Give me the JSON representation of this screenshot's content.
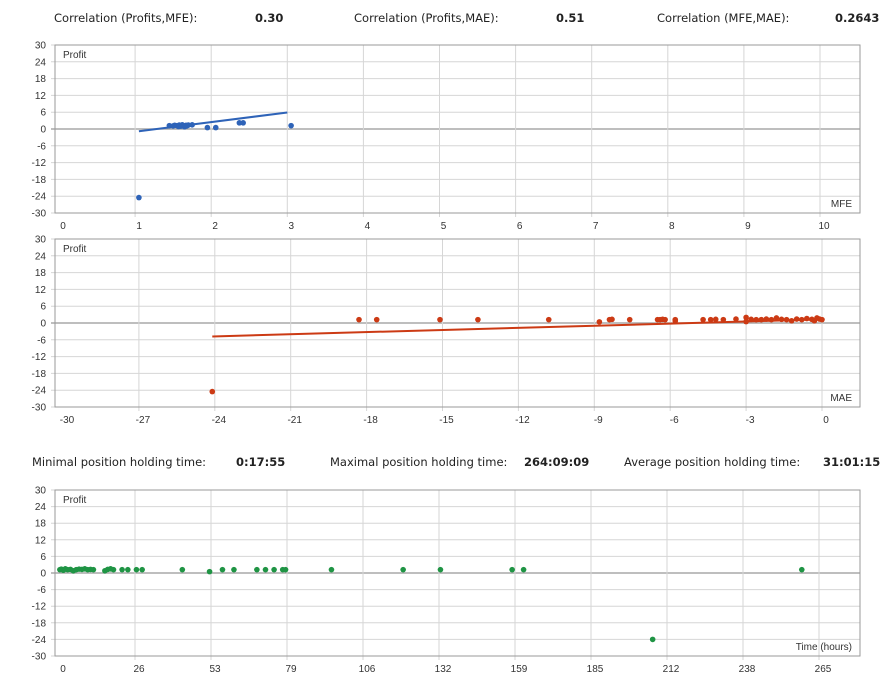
{
  "correlations": [
    {
      "label": "Correlation (Profits,MFE):",
      "value": "0.30"
    },
    {
      "label": "Correlation (Profits,MAE):",
      "value": "0.51"
    },
    {
      "label": "Correlation (MFE,MAE):",
      "value": "0.2643"
    }
  ],
  "holding_times": [
    {
      "label": "Minimal position holding time:",
      "value": "0:17:55"
    },
    {
      "label": "Maximal position holding time:",
      "value": "264:09:09"
    },
    {
      "label": "Average position holding time:",
      "value": "31:01:15"
    }
  ],
  "colors": {
    "mfe": "#2e63b8",
    "mae": "#cc3a14",
    "time": "#1f9444",
    "grid": "#d6d6d6",
    "axis": "#9a9a9a"
  },
  "chart_data": [
    {
      "type": "scatter",
      "title": "Profit vs MFE",
      "ylabel": "Profit",
      "xlabel": "MFE",
      "xlim": [
        0,
        10
      ],
      "ylim": [
        -30,
        30
      ],
      "x_ticks": [
        "0",
        "1",
        "2",
        "3",
        "4",
        "5",
        "6",
        "7",
        "8",
        "9",
        "10"
      ],
      "y_ticks": [
        "30",
        "24",
        "18",
        "12",
        "6",
        "0",
        "-6",
        "-12",
        "-18",
        "-24",
        "-30"
      ],
      "grid": true,
      "series": [
        {
          "name": "Profit",
          "points": [
            [
              1.05,
              -24.5
            ],
            [
              1.45,
              1.2
            ],
            [
              1.5,
              1.1
            ],
            [
              1.52,
              1.3
            ],
            [
              1.55,
              1.2
            ],
            [
              1.57,
              0.9
            ],
            [
              1.58,
              1.4
            ],
            [
              1.6,
              1.0
            ],
            [
              1.62,
              1.5
            ],
            [
              1.63,
              1.2
            ],
            [
              1.65,
              0.8
            ],
            [
              1.67,
              1.3
            ],
            [
              1.68,
              1.1
            ],
            [
              1.7,
              1.4
            ],
            [
              1.75,
              1.5
            ],
            [
              1.95,
              0.5
            ],
            [
              2.06,
              0.5
            ],
            [
              2.37,
              2.2
            ],
            [
              2.42,
              2.2
            ],
            [
              3.05,
              1.2
            ]
          ]
        }
      ],
      "trendline": {
        "x": [
          1.05,
          3.0
        ],
        "y": [
          -0.8,
          5.9
        ]
      }
    },
    {
      "type": "scatter",
      "title": "Profit vs MAE",
      "ylabel": "Profit",
      "xlabel": "MAE",
      "xlim": [
        -30,
        0
      ],
      "ylim": [
        -30,
        30
      ],
      "x_ticks": [
        "-30",
        "-27",
        "-24",
        "-21",
        "-18",
        "-15",
        "-12",
        "-9",
        "-6",
        "-3",
        "0"
      ],
      "y_ticks": [
        "30",
        "24",
        "18",
        "12",
        "6",
        "0",
        "-6",
        "-12",
        "-18",
        "-24",
        "-30"
      ],
      "grid": true,
      "series": [
        {
          "name": "Profit",
          "points": [
            [
              -24.1,
              -24.5
            ],
            [
              -18.3,
              1.2
            ],
            [
              -17.6,
              1.2
            ],
            [
              -15.1,
              1.2
            ],
            [
              -13.6,
              1.2
            ],
            [
              -10.8,
              1.2
            ],
            [
              -8.8,
              0.4
            ],
            [
              -8.4,
              1.2
            ],
            [
              -8.3,
              1.3
            ],
            [
              -7.6,
              1.2
            ],
            [
              -6.5,
              1.2
            ],
            [
              -6.4,
              1.2
            ],
            [
              -6.3,
              1.3
            ],
            [
              -6.2,
              1.2
            ],
            [
              -5.8,
              0.7
            ],
            [
              -5.8,
              1.2
            ],
            [
              -4.7,
              1.2
            ],
            [
              -4.4,
              1.2
            ],
            [
              -4.2,
              1.3
            ],
            [
              -3.9,
              1.2
            ],
            [
              -3.4,
              1.4
            ],
            [
              -3.0,
              2.0
            ],
            [
              -3.0,
              0.5
            ],
            [
              -2.8,
              1.3
            ],
            [
              -2.6,
              1.2
            ],
            [
              -2.4,
              1.2
            ],
            [
              -2.2,
              1.4
            ],
            [
              -2.0,
              1.2
            ],
            [
              -1.8,
              1.8
            ],
            [
              -1.6,
              1.3
            ],
            [
              -1.4,
              1.2
            ],
            [
              -1.2,
              0.8
            ],
            [
              -1.0,
              1.4
            ],
            [
              -0.8,
              1.2
            ],
            [
              -0.6,
              1.6
            ],
            [
              -0.4,
              1.3
            ],
            [
              -0.3,
              0.8
            ],
            [
              -0.2,
              1.8
            ],
            [
              -0.1,
              1.4
            ],
            [
              0.0,
              1.2
            ]
          ]
        }
      ],
      "trendline": {
        "x": [
          -24.1,
          0
        ],
        "y": [
          -4.8,
          1.3
        ]
      }
    },
    {
      "type": "scatter",
      "title": "Profit vs Time",
      "ylabel": "Profit",
      "xlabel": "Time (hours)",
      "xlim": [
        0,
        265
      ],
      "ylim": [
        -30,
        30
      ],
      "x_ticks": [
        "0",
        "26",
        "53",
        "79",
        "106",
        "132",
        "159",
        "185",
        "212",
        "238",
        "265"
      ],
      "y_ticks": [
        "30",
        "24",
        "18",
        "12",
        "6",
        "0",
        "-6",
        "-12",
        "-18",
        "-24",
        "-30"
      ],
      "grid": true,
      "series": [
        {
          "name": "Profit",
          "points": [
            [
              0.3,
              1.2
            ],
            [
              0.8,
              1.4
            ],
            [
              1.5,
              1.0
            ],
            [
              2.2,
              1.5
            ],
            [
              3,
              1.2
            ],
            [
              4,
              1.3
            ],
            [
              5,
              0.8
            ],
            [
              6,
              1.2
            ],
            [
              7,
              1.4
            ],
            [
              8,
              1.3
            ],
            [
              9,
              1.5
            ],
            [
              10,
              1.2
            ],
            [
              11,
              1.3
            ],
            [
              12,
              1.2
            ],
            [
              16,
              0.8
            ],
            [
              17,
              1.3
            ],
            [
              18,
              1.5
            ],
            [
              19,
              1.2
            ],
            [
              22,
              1.2
            ],
            [
              24,
              1.2
            ],
            [
              27,
              1.2
            ],
            [
              29,
              1.2
            ],
            [
              43,
              1.2
            ],
            [
              52.5,
              0.5
            ],
            [
              57,
              1.2
            ],
            [
              61,
              1.2
            ],
            [
              69,
              1.2
            ],
            [
              72,
              1.2
            ],
            [
              75,
              1.2
            ],
            [
              78,
              1.2
            ],
            [
              79,
              1.2
            ],
            [
              95,
              1.2
            ],
            [
              120,
              1.2
            ],
            [
              133,
              1.2
            ],
            [
              158,
              1.2
            ],
            [
              162,
              1.2
            ],
            [
              207,
              -24.0
            ],
            [
              259,
              1.2
            ]
          ]
        }
      ]
    }
  ]
}
